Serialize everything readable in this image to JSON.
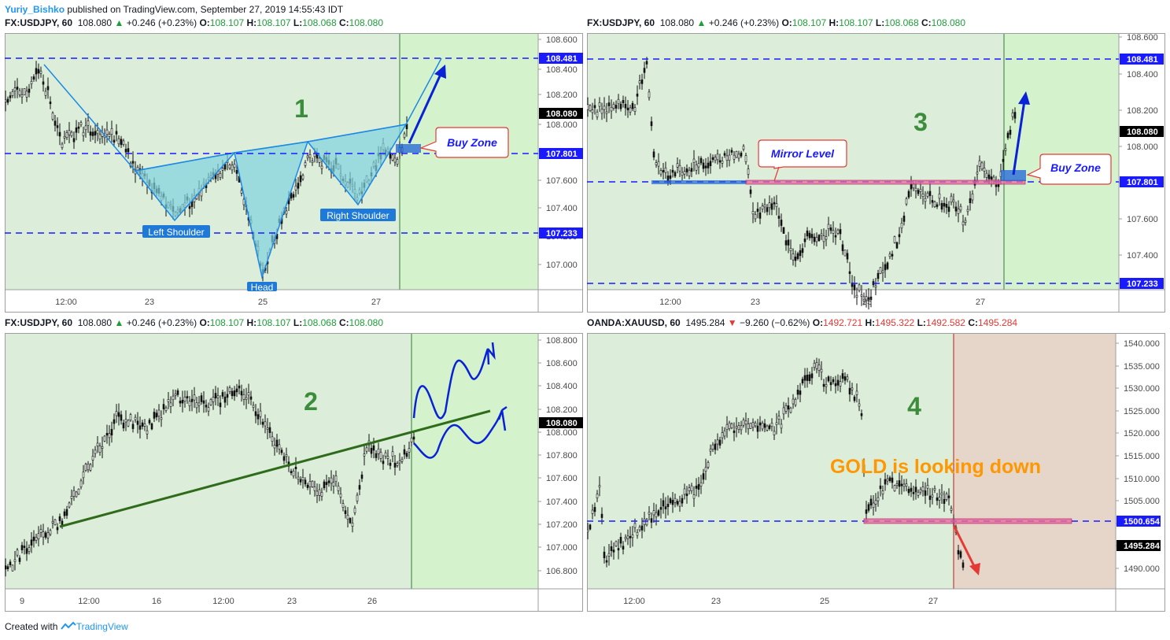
{
  "header": {
    "author": "Yuriy_Bishko",
    "text": " published on TradingView.com, September 27, 2019 14:55:43 IDT"
  },
  "footer": {
    "text": "Created with",
    "brand": "TradingView"
  },
  "colors": {
    "bg": "#dcedd9",
    "zone_green": "#d4f3cd",
    "zone_red": "#e6d6ca",
    "dash": "#1a1aff",
    "tri": "#7fd3e0",
    "arrow": "#0a22d6",
    "trend": "#2e6b1a",
    "gold_text": "#ff9800",
    "number": "#3b8c3b"
  },
  "charts": [
    {
      "symbol": "FX:USDJPY, 60",
      "last": "108.080",
      "arrow": "▲",
      "change": "+0.246 (+0.23%)",
      "o": "108.107",
      "h": "108.107",
      "l": "108.068",
      "c": "108.080",
      "ohlc_color": "green",
      "number": "1",
      "price_min": 106.9,
      "price_max": 108.66,
      "yticks": [
        "108.600",
        "108.400",
        "108.200",
        "108.000",
        "107.800",
        "107.600",
        "107.400",
        "107.200",
        "107.000"
      ],
      "xticks": [
        "12:00",
        "23",
        "25",
        "27"
      ],
      "levels": [
        {
          "value": 108.481,
          "label": "108.481"
        },
        {
          "value": 107.801,
          "label": "107.801"
        },
        {
          "value": 107.233,
          "label": "107.233"
        }
      ],
      "last_label": "108.080",
      "annotations": [
        "Left Shoulder",
        "Head",
        "Right Shoulder"
      ],
      "callout": "Buy Zone"
    },
    {
      "symbol": "FX:USDJPY, 60",
      "last": "108.080",
      "arrow": "▲",
      "change": "+0.246 (+0.23%)",
      "o": "108.107",
      "h": "108.107",
      "l": "108.068",
      "c": "108.080",
      "ohlc_color": "green",
      "number": "3",
      "yticks": [
        "108.600",
        "108.400",
        "108.200",
        "108.000",
        "107.800",
        "107.600",
        "107.400"
      ],
      "xticks": [
        "12:00",
        "23",
        "25",
        "27"
      ],
      "levels": [
        {
          "value": 108.481,
          "label": "108.481"
        },
        {
          "value": 107.801,
          "label": "107.801"
        },
        {
          "value": 107.233,
          "label": "107.233"
        }
      ],
      "last_label": "108.080",
      "callouts": [
        "Mirror Level",
        "Buy Zone"
      ]
    },
    {
      "symbol": "FX:USDJPY, 60",
      "last": "108.080",
      "arrow": "▲",
      "change": "+0.246 (+0.23%)",
      "o": "108.107",
      "h": "108.107",
      "l": "108.068",
      "c": "108.080",
      "ohlc_color": "green",
      "number": "2",
      "yticks": [
        "108.800",
        "108.600",
        "108.400",
        "108.200",
        "108.000",
        "107.800",
        "107.600",
        "107.400",
        "107.200",
        "107.000",
        "106.800"
      ],
      "xticks": [
        "9",
        "12:00",
        "16",
        "12:00",
        "23",
        "26"
      ],
      "last_label": "108.080"
    },
    {
      "symbol": "OANDA:XAUUSD, 60",
      "last": "1495.284",
      "arrow": "▼",
      "change": "−9.260 (−0.62%)",
      "o": "1492.721",
      "h": "1495.322",
      "l": "1492.582",
      "c": "1495.284",
      "ohlc_color": "red",
      "number": "4",
      "yticks": [
        "1540.000",
        "1535.000",
        "1530.000",
        "1525.000",
        "1520.000",
        "1515.000",
        "1510.000",
        "1505.000",
        "1500.000",
        "1495.000",
        "1490.000"
      ],
      "xticks": [
        "12:00",
        "23",
        "25",
        "27"
      ],
      "levels": [
        {
          "value": 1500.654,
          "label": "1500.654"
        }
      ],
      "last_label": "1495.284",
      "annotation": "GOLD is looking down"
    }
  ]
}
